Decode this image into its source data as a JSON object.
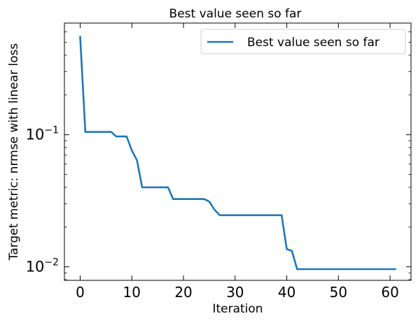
{
  "chart_data": {
    "type": "line",
    "title": "Best value seen so far",
    "xlabel": "Iteration",
    "ylabel": "Target metric: nrmse with linear loss",
    "xlim": [
      -3.05,
      64.05
    ],
    "ylim": [
      0.0079,
      0.7
    ],
    "yscale": "log",
    "grid": false,
    "legend_position": "top-right",
    "x_ticks": [
      {
        "value": 0,
        "label": "0"
      },
      {
        "value": 10,
        "label": "10"
      },
      {
        "value": 20,
        "label": "20"
      },
      {
        "value": 30,
        "label": "30"
      },
      {
        "value": 40,
        "label": "40"
      },
      {
        "value": 50,
        "label": "50"
      },
      {
        "value": 60,
        "label": "60"
      }
    ],
    "y_ticks": [
      {
        "value": 0.01,
        "base": "10",
        "exponent": "−2"
      },
      {
        "value": 0.1,
        "base": "10",
        "exponent": "−1"
      }
    ],
    "series": [
      {
        "name": "Best value seen so far",
        "color": "#1f77b4",
        "x": [
          0,
          1,
          2,
          3,
          4,
          5,
          6,
          7,
          8,
          9,
          10,
          11,
          12,
          13,
          14,
          15,
          16,
          17,
          18,
          19,
          20,
          21,
          22,
          23,
          24,
          25,
          26,
          27,
          28,
          29,
          30,
          31,
          32,
          33,
          34,
          35,
          36,
          37,
          38,
          39,
          40,
          41,
          42,
          43,
          44,
          45,
          46,
          47,
          48,
          49,
          50,
          51,
          52,
          53,
          54,
          55,
          56,
          57,
          58,
          59,
          60,
          61
        ],
        "y": [
          0.55,
          0.105,
          0.105,
          0.105,
          0.105,
          0.105,
          0.105,
          0.097,
          0.097,
          0.097,
          0.076,
          0.064,
          0.04,
          0.04,
          0.04,
          0.04,
          0.04,
          0.04,
          0.0326,
          0.0326,
          0.0326,
          0.0326,
          0.0326,
          0.0326,
          0.0326,
          0.0312,
          0.0271,
          0.0246,
          0.0246,
          0.0246,
          0.0246,
          0.0246,
          0.0246,
          0.0246,
          0.0246,
          0.0246,
          0.0246,
          0.0246,
          0.0246,
          0.0246,
          0.0136,
          0.0132,
          0.0096,
          0.0096,
          0.0096,
          0.0096,
          0.0096,
          0.0096,
          0.0096,
          0.0096,
          0.0096,
          0.0096,
          0.0096,
          0.0096,
          0.0096,
          0.0096,
          0.0096,
          0.0096,
          0.0096,
          0.0096,
          0.0096,
          0.0096
        ]
      }
    ]
  }
}
